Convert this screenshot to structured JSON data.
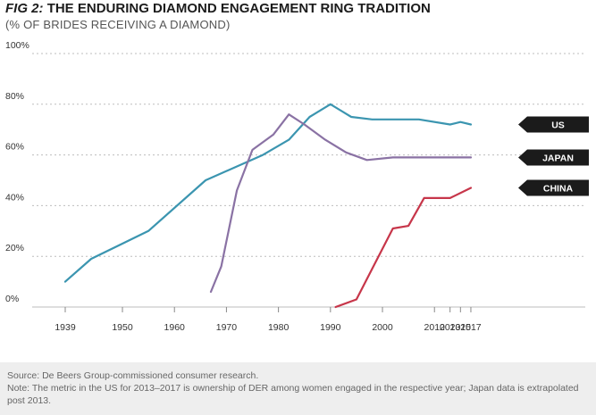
{
  "header": {
    "fig_label": "FIG 2:",
    "title": "THE ENDURING DIAMOND ENGAGEMENT RING TRADITION",
    "subtitle": "(% OF BRIDES RECEIVING A DIAMOND)"
  },
  "chart_data": {
    "type": "line",
    "title": "FIG 2: THE ENDURING DIAMOND ENGAGEMENT RING TRADITION",
    "subtitle": "(% OF BRIDES RECEIVING A DIAMOND)",
    "xlabel": "",
    "ylabel": "",
    "x_ticks": [
      1939,
      1950,
      1960,
      1970,
      1980,
      1990,
      2000,
      2010,
      2013,
      2015,
      2017
    ],
    "x_tick_labels": [
      "1939",
      "1950",
      "1960",
      "1970",
      "1980",
      "1990",
      "2000",
      "2010",
      "2013",
      "2015",
      "2017"
    ],
    "y_ticks": [
      0,
      20,
      40,
      60,
      80,
      100
    ],
    "y_tick_labels": [
      "0%",
      "20%",
      "40%",
      "60%",
      "80%",
      "100%"
    ],
    "xlim": [
      1937,
      2018
    ],
    "ylim": [
      0,
      100
    ],
    "grid": true,
    "legend": "direct labels at right end of each line",
    "series": [
      {
        "name": "US",
        "color": "#3b95b0",
        "points": [
          [
            1939,
            10
          ],
          [
            1944,
            19
          ],
          [
            1955,
            30
          ],
          [
            1966,
            50
          ],
          [
            1977,
            60
          ],
          [
            1982,
            66
          ],
          [
            1986,
            75
          ],
          [
            1990,
            80
          ],
          [
            1994,
            75
          ],
          [
            1998,
            74
          ],
          [
            2003,
            74
          ],
          [
            2007,
            74
          ],
          [
            2013,
            72
          ],
          [
            2015,
            73
          ],
          [
            2017,
            72
          ]
        ]
      },
      {
        "name": "JAPAN",
        "color": "#8a72a4",
        "points": [
          [
            1967,
            6
          ],
          [
            1969,
            16
          ],
          [
            1972,
            46
          ],
          [
            1975,
            62
          ],
          [
            1979,
            68
          ],
          [
            1982,
            76
          ],
          [
            1985,
            72
          ],
          [
            1989,
            66
          ],
          [
            1993,
            61
          ],
          [
            1997,
            58
          ],
          [
            2002,
            59
          ],
          [
            2007,
            59
          ],
          [
            2017,
            59
          ]
        ]
      },
      {
        "name": "CHINA",
        "color": "#c7364a",
        "points": [
          [
            1991,
            0
          ],
          [
            1995,
            3
          ],
          [
            1998,
            15
          ],
          [
            2002,
            31
          ],
          [
            2005,
            32
          ],
          [
            2008,
            43
          ],
          [
            2013,
            43
          ],
          [
            2017,
            47
          ]
        ]
      }
    ]
  },
  "footer": {
    "source": "Source: De Beers Group-commissioned consumer research.",
    "note": "Note: The metric in the US for 2013–2017 is ownership of DER among women engaged in the respective year; Japan data is extrapolated post 2013."
  }
}
